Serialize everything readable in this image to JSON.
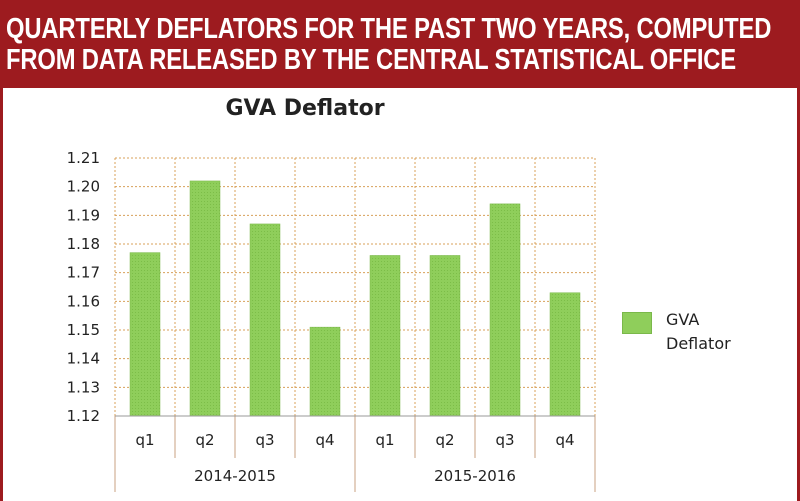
{
  "header": {
    "line1": "QUARTERLY DEFLATORS FOR THE PAST TWO YEARS, COMPUTED",
    "line2": "FROM DATA RELEASED BY THE CENTRAL STATISTICAL OFFICE"
  },
  "colors": {
    "header_bg": "#9d1b1f",
    "bar": "#8fce5b",
    "grid": "#d8a05a"
  },
  "chart_data": {
    "type": "bar",
    "title": "GVA Deflator",
    "xlabel": "",
    "ylabel": "",
    "ylim": [
      1.12,
      1.21
    ],
    "yticks": [
      "1.12",
      "1.13",
      "1.14",
      "1.15",
      "1.16",
      "1.17",
      "1.18",
      "1.19",
      "1.20",
      "1.21"
    ],
    "categories": [
      "q1",
      "q2",
      "q3",
      "q4",
      "q1",
      "q2",
      "q3",
      "q4"
    ],
    "groups": [
      {
        "label": "2014-2015",
        "categories": [
          "q1",
          "q2",
          "q3",
          "q4"
        ]
      },
      {
        "label": "2015-2016",
        "categories": [
          "q1",
          "q2",
          "q3",
          "q4"
        ]
      }
    ],
    "series": [
      {
        "name": "GVA\nDeflator",
        "values": [
          1.177,
          1.202,
          1.187,
          1.151,
          1.176,
          1.176,
          1.194,
          1.163
        ]
      }
    ],
    "grid": true,
    "legend": "right"
  }
}
